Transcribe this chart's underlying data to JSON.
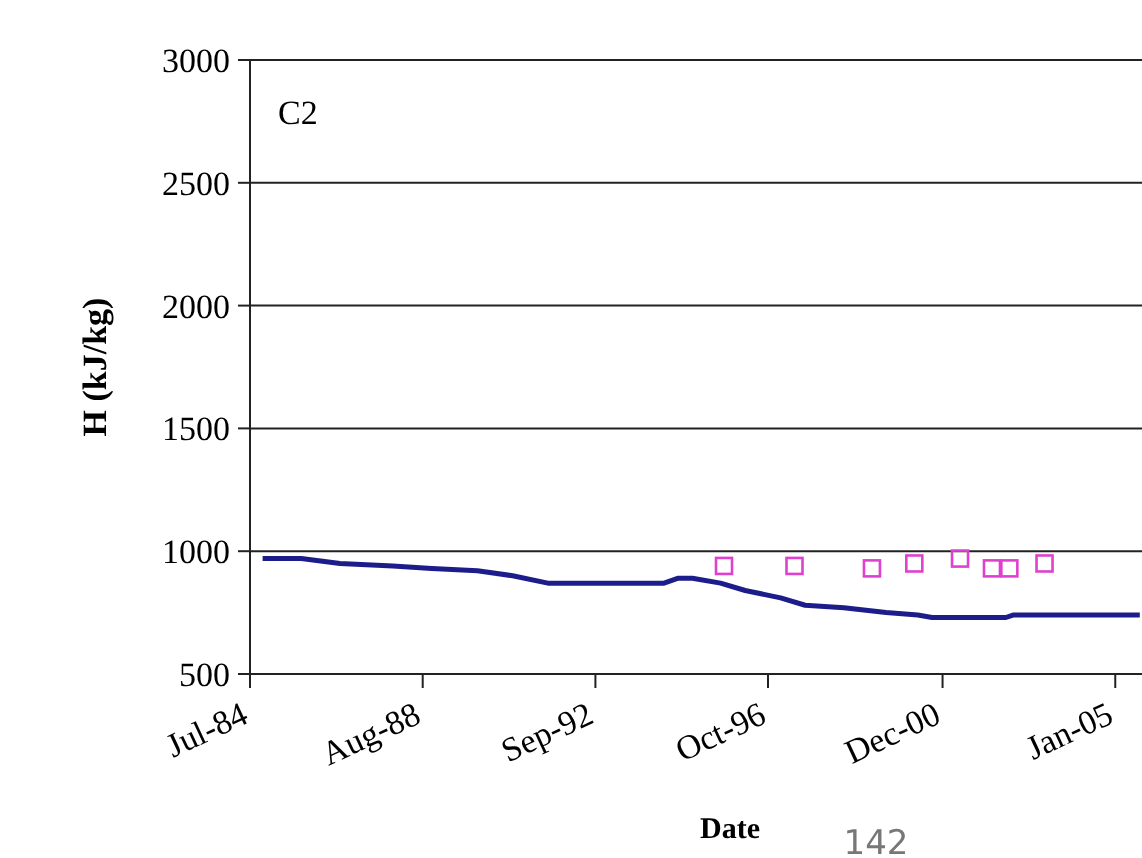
{
  "chart_data": {
    "type": "line",
    "xlabel": "Date",
    "ylabel": "H (kJ/kg)",
    "annotations": [
      "C2",
      "142"
    ],
    "xlim": [
      "1984-07-15",
      "2005-08-20"
    ],
    "ylim": [
      500,
      3000
    ],
    "yticks": [
      500,
      1000,
      1500,
      2000,
      2500,
      3000
    ],
    "xticks": [
      {
        "value": "1984-07-15",
        "label": "Jul-84"
      },
      {
        "value": "1988-08-15",
        "label": "Aug-88"
      },
      {
        "value": "1992-09-15",
        "label": "Sep-92"
      },
      {
        "value": "1996-10-15",
        "label": "Oct-96"
      },
      {
        "value": "2000-12-01",
        "label": "Dec-00"
      },
      {
        "value": "2005-01-01",
        "label": "Jan-05"
      }
    ],
    "grid": "y",
    "series": [
      {
        "type": "line",
        "color": "#1c1c8a",
        "marker": "none",
        "line_style": "solid",
        "x": [
          "1984-11",
          "1985-10",
          "1986-09",
          "1987-12",
          "1988-11",
          "1989-12",
          "1990-10",
          "1991-08",
          "1994-05",
          "1994-09",
          "1995-01",
          "1995-09",
          "1996-04",
          "1997-02",
          "1997-09",
          "1998-08",
          "1999-08",
          "2000-05",
          "2000-09",
          "2002-06",
          "2002-08",
          "2005-08"
        ],
        "values": [
          970,
          970,
          950,
          940,
          930,
          920,
          900,
          870,
          870,
          890,
          890,
          870,
          840,
          810,
          780,
          770,
          750,
          740,
          730,
          730,
          740,
          740
        ]
      },
      {
        "type": "scatter",
        "color": "#e040d0",
        "marker": "square",
        "x": [
          "1995-10",
          "1997-06",
          "1999-04",
          "2000-04",
          "2001-05",
          "2002-02",
          "2002-07",
          "2003-05"
        ],
        "values": [
          940,
          940,
          930,
          950,
          970,
          930,
          930,
          950
        ]
      }
    ]
  }
}
